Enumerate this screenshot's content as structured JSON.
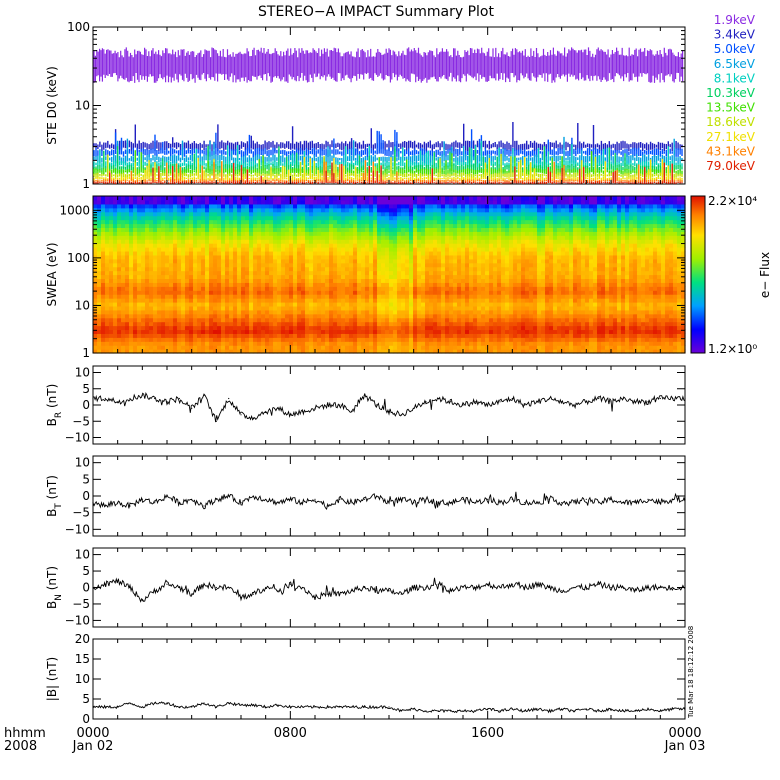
{
  "title": "STEREO−A IMPACT Summary Plot",
  "time_axis": {
    "row1_label": "hhmm",
    "row2_label": "2008",
    "ticks": [
      {
        "hhmm": "0000",
        "date": "Jan 02"
      },
      {
        "hhmm": "0800",
        "date": ""
      },
      {
        "hhmm": "1600",
        "date": ""
      },
      {
        "hhmm": "0000",
        "date": "Jan 03"
      }
    ]
  },
  "timestamp": "Tue Mar 18 18:12:12 2008",
  "colorbar": {
    "max_label": "2.2×10⁴",
    "min_label": "1.2×10⁰",
    "label": "e− Flux"
  },
  "chart_data": [
    {
      "id": "ste",
      "type": "line",
      "ylabel": "STE D0 (keV)",
      "yscale": "log",
      "ylim": [
        1,
        100
      ],
      "yticks": [
        "1",
        "10",
        "100"
      ],
      "xlim": [
        0,
        24
      ],
      "series": [
        {
          "name": "1.9keV",
          "color": "#8a2be2",
          "band": [
            26,
            41
          ]
        },
        {
          "name": "3.4keV",
          "color": "#2020c0",
          "band": [
            2.6,
            3.6
          ]
        },
        {
          "name": "5.0keV",
          "color": "#0050ff",
          "band": [
            2.2,
            2.9
          ]
        },
        {
          "name": "6.5keV",
          "color": "#00a0e0",
          "band": [
            1.8,
            2.4
          ]
        },
        {
          "name": "8.1keV",
          "color": "#00d0c0",
          "band": [
            1.6,
            2.0
          ]
        },
        {
          "name": "10.3keV",
          "color": "#00d060",
          "band": [
            1.4,
            1.8
          ]
        },
        {
          "name": "13.5keV",
          "color": "#40e000",
          "band": [
            1.3,
            1.6
          ]
        },
        {
          "name": "18.6keV",
          "color": "#c0e000",
          "band": [
            1.2,
            1.4
          ]
        },
        {
          "name": "27.1keV",
          "color": "#f0e000",
          "band": [
            1.1,
            1.25
          ]
        },
        {
          "name": "43.1keV",
          "color": "#ff8000",
          "band": [
            1.05,
            1.15
          ]
        },
        {
          "name": "79.0keV",
          "color": "#e02000",
          "band": [
            1.0,
            1.08
          ]
        }
      ]
    },
    {
      "id": "swea",
      "type": "heatmap",
      "ylabel": "SWEA (eV)",
      "yscale": "log",
      "ylim": [
        1,
        2000
      ],
      "yticks": [
        "1",
        "10",
        "100",
        "1000"
      ],
      "xlim": [
        0,
        24
      ],
      "zlim": [
        1.2,
        22000
      ],
      "energy_profile_eV": [
        1.5,
        3,
        5,
        10,
        20,
        40,
        100,
        200,
        400,
        800,
        1500
      ],
      "relative_level": [
        0.85,
        0.97,
        0.9,
        0.8,
        0.9,
        0.82,
        0.8,
        0.72,
        0.56,
        0.38,
        0.15
      ]
    },
    {
      "id": "br",
      "type": "line",
      "ylabel": "B_R (nT)",
      "ylim": [
        -12,
        12
      ],
      "yticks": [
        "−10",
        "−5",
        "0",
        "5",
        "10"
      ],
      "xlim": [
        0,
        24
      ],
      "x": [
        0,
        0.5,
        1,
        1.5,
        2,
        2.5,
        3,
        3.5,
        4,
        4.5,
        5,
        5.5,
        6,
        6.5,
        7,
        7.5,
        8,
        8.5,
        9,
        9.5,
        10,
        10.5,
        11,
        11.5,
        12,
        12.5,
        13,
        13.5,
        14,
        14.5,
        15,
        15.5,
        16,
        16.5,
        17,
        17.5,
        18,
        18.5,
        19,
        19.5,
        20,
        20.5,
        21,
        21.5,
        22,
        22.5,
        23,
        23.5,
        24
      ],
      "values": [
        2,
        2,
        1,
        2,
        3,
        2,
        1,
        2,
        -1,
        3,
        -5,
        2,
        -3,
        -4,
        -2,
        -1,
        -3,
        -2,
        -1,
        0,
        0,
        -2,
        3,
        0,
        -2,
        -3,
        -1,
        1,
        2,
        1,
        0,
        1,
        0,
        1,
        2,
        0,
        1,
        2,
        1,
        0,
        1,
        2,
        1,
        2,
        1,
        1,
        2,
        2,
        2
      ]
    },
    {
      "id": "bt",
      "type": "line",
      "ylabel": "B_T (nT)",
      "ylim": [
        -12,
        12
      ],
      "yticks": [
        "−10",
        "−5",
        "0",
        "5",
        "10"
      ],
      "xlim": [
        0,
        24
      ],
      "x": [
        0,
        0.5,
        1,
        1.5,
        2,
        2.5,
        3,
        3.5,
        4,
        4.5,
        5,
        5.5,
        6,
        6.5,
        7,
        7.5,
        8,
        8.5,
        9,
        9.5,
        10,
        10.5,
        11,
        11.5,
        12,
        12.5,
        13,
        13.5,
        14,
        14.5,
        15,
        15.5,
        16,
        16.5,
        17,
        17.5,
        18,
        18.5,
        19,
        19.5,
        20,
        20.5,
        21,
        21.5,
        22,
        22.5,
        23,
        23.5,
        24
      ],
      "values": [
        -2,
        -3,
        -2,
        -3,
        -1,
        -2,
        0,
        -2,
        -1,
        -3,
        -1,
        0,
        -2,
        0,
        -1,
        -2,
        -1,
        -2,
        -1,
        -3,
        -1,
        -2,
        -1,
        0,
        -2,
        -1,
        -2,
        -1,
        -2,
        -2,
        -1,
        -2,
        -1,
        -2,
        -1,
        -2,
        -2,
        -1,
        -2,
        -2,
        -1,
        -2,
        -1,
        -2,
        -2,
        -1,
        -2,
        -1,
        -1
      ]
    },
    {
      "id": "bn",
      "type": "line",
      "ylabel": "B_N (nT)",
      "ylim": [
        -12,
        12
      ],
      "yticks": [
        "−10",
        "−5",
        "0",
        "5",
        "10"
      ],
      "xlim": [
        0,
        24
      ],
      "x": [
        0,
        0.5,
        1,
        1.5,
        2,
        2.5,
        3,
        3.5,
        4,
        4.5,
        5,
        5.5,
        6,
        6.5,
        7,
        7.5,
        8,
        8.5,
        9,
        9.5,
        10,
        10.5,
        11,
        11.5,
        12,
        12.5,
        13,
        13.5,
        14,
        14.5,
        15,
        15.5,
        16,
        16.5,
        17,
        17.5,
        18,
        18.5,
        19,
        19.5,
        20,
        20.5,
        21,
        21.5,
        22,
        22.5,
        23,
        23.5,
        24
      ],
      "values": [
        0,
        1,
        2,
        0,
        -4,
        -1,
        1,
        0,
        -2,
        1,
        0,
        0,
        -3,
        -2,
        0,
        -1,
        1,
        0,
        -3,
        -2,
        -2,
        -1,
        0,
        -1,
        -1,
        -2,
        0,
        0,
        1,
        -1,
        0,
        0,
        1,
        0,
        1,
        0,
        1,
        0,
        -1,
        0,
        0,
        1,
        0,
        0,
        -1,
        0,
        0,
        0,
        0
      ]
    },
    {
      "id": "b",
      "type": "line",
      "ylabel": "|B| (nT)",
      "ylim": [
        0,
        20
      ],
      "yticks": [
        "0",
        "5",
        "10",
        "15",
        "20"
      ],
      "xlim": [
        0,
        24
      ],
      "x": [
        0,
        0.5,
        1,
        1.5,
        2,
        2.5,
        3,
        3.5,
        4,
        4.5,
        5,
        5.5,
        6,
        6.5,
        7,
        7.5,
        8,
        8.5,
        9,
        9.5,
        10,
        10.5,
        11,
        11.5,
        12,
        12.5,
        13,
        13.5,
        14,
        14.5,
        15,
        15.5,
        16,
        16.5,
        17,
        17.5,
        18,
        18.5,
        19,
        19.5,
        20,
        20.5,
        21,
        21.5,
        22,
        22.5,
        23,
        23.5,
        24
      ],
      "values": [
        3,
        3,
        3,
        4,
        3,
        4,
        4,
        3,
        3,
        4,
        3,
        4,
        3.5,
        3.5,
        3,
        3.5,
        3,
        3,
        3,
        3,
        3,
        3,
        3,
        3,
        3,
        2,
        2.5,
        2,
        2,
        2,
        2,
        2,
        2.5,
        2,
        2.5,
        2,
        2.5,
        2,
        2.5,
        2,
        2.5,
        2,
        2.5,
        2,
        2,
        2.5,
        2,
        2.5,
        2.5
      ]
    }
  ]
}
